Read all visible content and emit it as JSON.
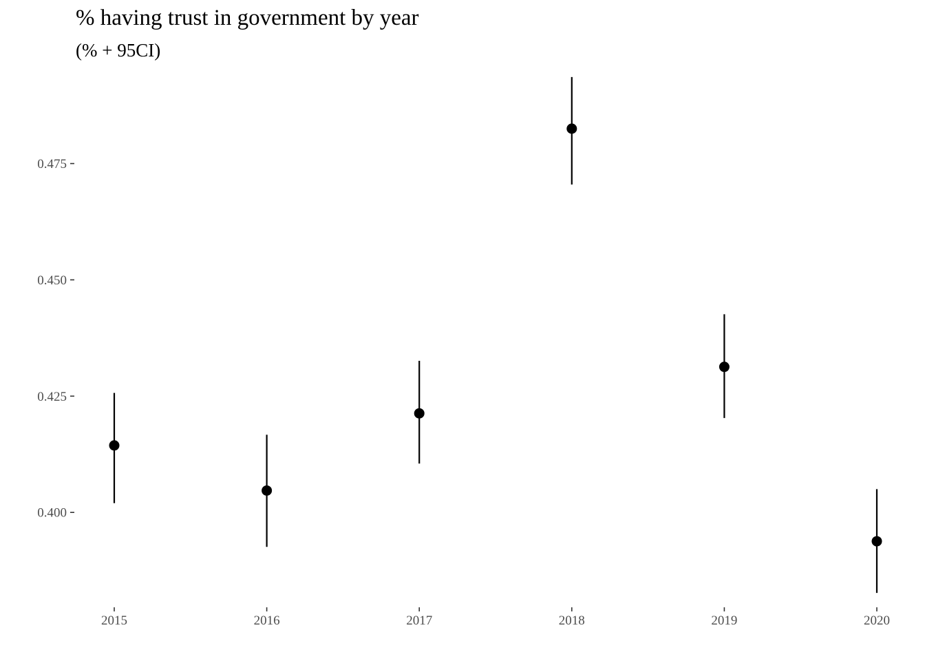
{
  "chart_data": {
    "type": "scatter",
    "title": "% having trust in government by year",
    "subtitle": "(% + 95CI)",
    "xlabel": "",
    "ylabel": "",
    "x": [
      "2015",
      "2016",
      "2017",
      "2018",
      "2019",
      "2020"
    ],
    "series": [
      {
        "values": [
          0.4144,
          0.4047,
          0.4213,
          0.4825,
          0.4313,
          0.3938
        ],
        "lower": [
          0.402,
          0.3926,
          0.4105,
          0.4705,
          0.4203,
          0.3827
        ],
        "upper": [
          0.4257,
          0.4167,
          0.4326,
          0.4936,
          0.4426,
          0.405
        ]
      }
    ],
    "y_ticks": [
      "0.400",
      "0.425",
      "0.450",
      "0.475"
    ],
    "y_tick_values": [
      0.4,
      0.425,
      0.45,
      0.475
    ],
    "ylim": [
      0.3799,
      0.4961
    ],
    "grid": false,
    "legend": "none",
    "colors": {
      "point": "#000000",
      "errorbar": "#000000",
      "tick_label": "#4d4d4d",
      "tick": "#333333"
    }
  }
}
